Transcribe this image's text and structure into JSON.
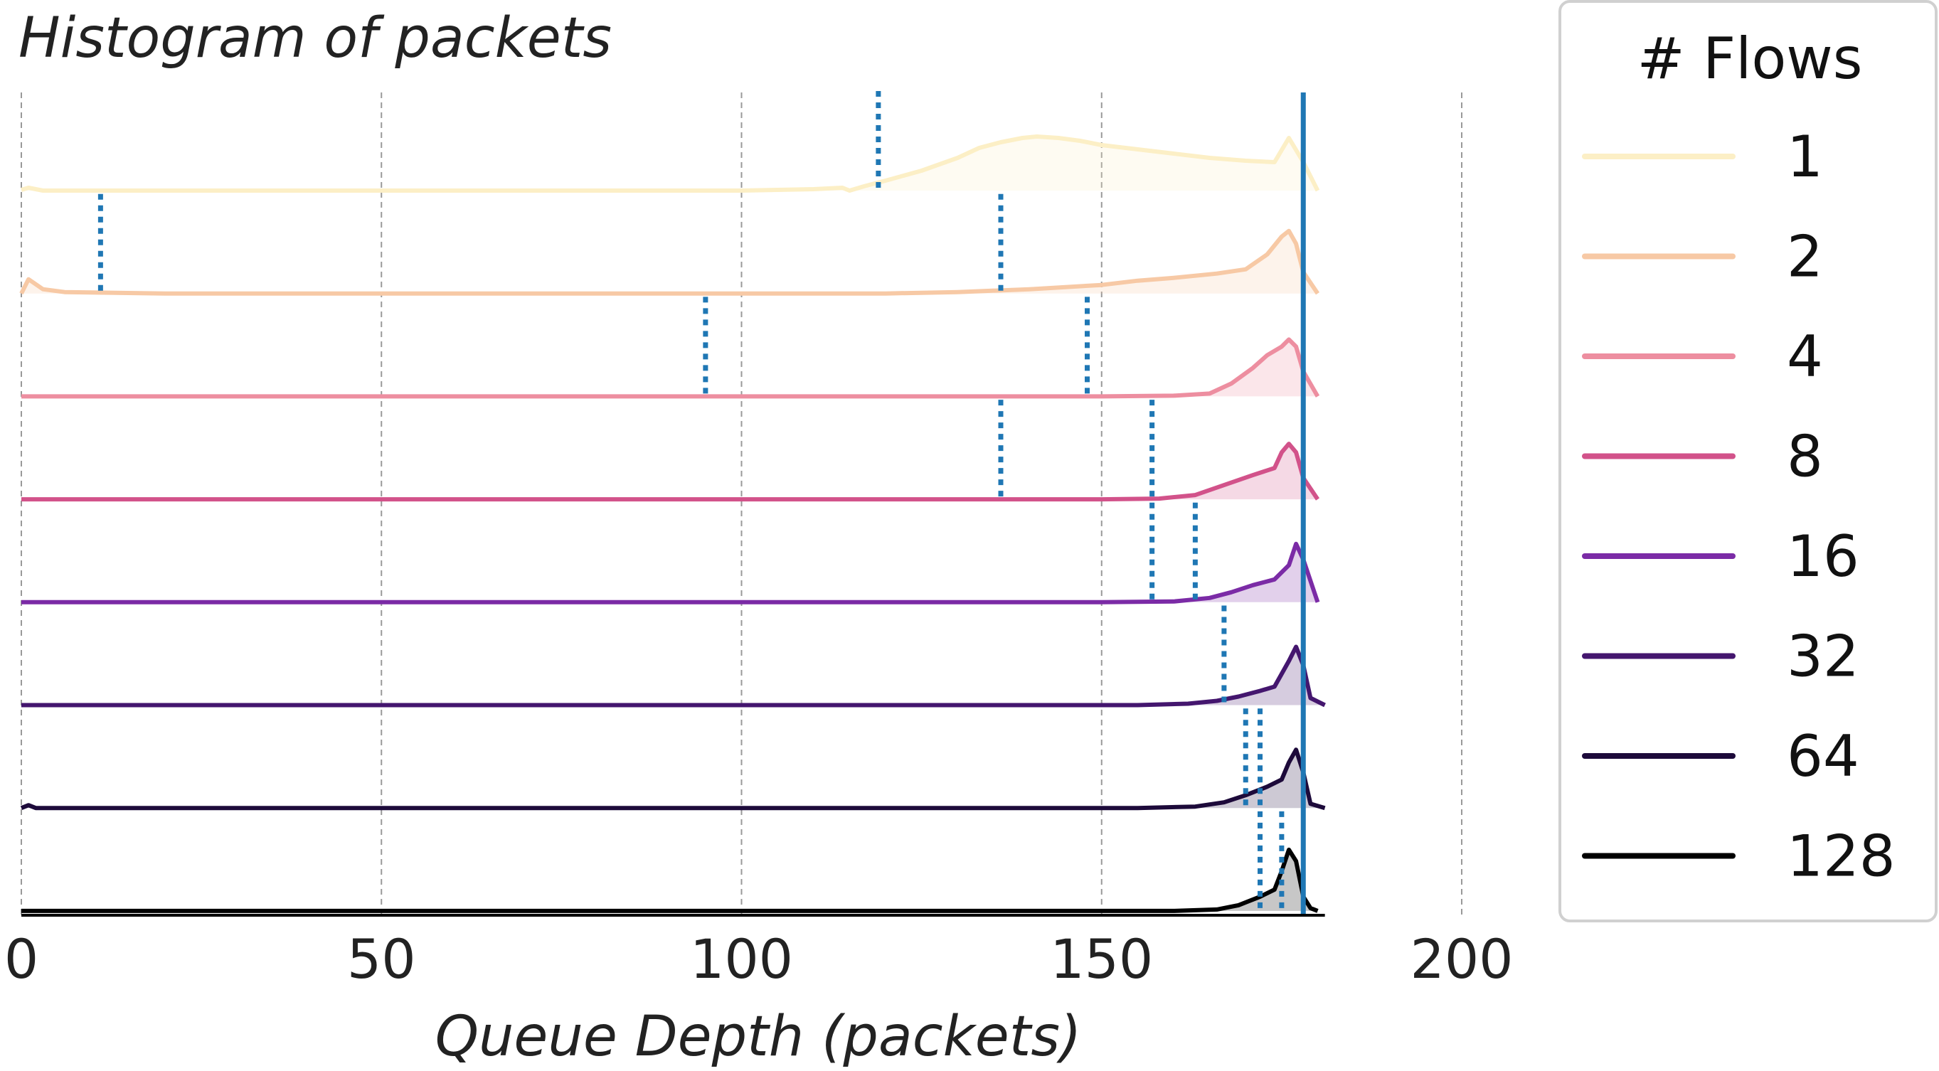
{
  "chart_data": {
    "type": "area",
    "title": "Histogram of packets",
    "xlabel": "Queue Depth (packets)",
    "ylabel": "",
    "xlim": [
      0,
      200
    ],
    "xticks": [
      0,
      50,
      100,
      150,
      200
    ],
    "grid": "vertical dashed",
    "buffer_size_line": 178,
    "legend": {
      "title": "# Flows",
      "placement": "right"
    },
    "series": [
      {
        "name": "1",
        "color": "#fcefc6",
        "mean_markers": [
          119,
          178
        ],
        "peak_x": 140,
        "points": [
          [
            0,
            1
          ],
          [
            1,
            4
          ],
          [
            3,
            0
          ],
          [
            60,
            0
          ],
          [
            100,
            0
          ],
          [
            110,
            2
          ],
          [
            114,
            4
          ],
          [
            115,
            0
          ],
          [
            117,
            6
          ],
          [
            120,
            14
          ],
          [
            125,
            28
          ],
          [
            130,
            46
          ],
          [
            133,
            60
          ],
          [
            136,
            68
          ],
          [
            139,
            74
          ],
          [
            141,
            76
          ],
          [
            144,
            74
          ],
          [
            147,
            70
          ],
          [
            150,
            64
          ],
          [
            155,
            58
          ],
          [
            160,
            52
          ],
          [
            165,
            46
          ],
          [
            170,
            42
          ],
          [
            174,
            40
          ],
          [
            176,
            74
          ],
          [
            178,
            40
          ],
          [
            180,
            0
          ]
        ]
      },
      {
        "name": "2",
        "color": "#f7c9a5",
        "mean_markers": [
          11,
          136,
          178
        ],
        "peak_x": 176,
        "points": [
          [
            0,
            0
          ],
          [
            1,
            20
          ],
          [
            3,
            6
          ],
          [
            6,
            2
          ],
          [
            20,
            0
          ],
          [
            120,
            0
          ],
          [
            130,
            2
          ],
          [
            140,
            6
          ],
          [
            150,
            12
          ],
          [
            155,
            18
          ],
          [
            160,
            22
          ],
          [
            166,
            28
          ],
          [
            170,
            34
          ],
          [
            173,
            55
          ],
          [
            175,
            80
          ],
          [
            176,
            88
          ],
          [
            177,
            70
          ],
          [
            178,
            30
          ],
          [
            180,
            0
          ]
        ]
      },
      {
        "name": "4",
        "color": "#ed8ea0",
        "mean_markers": [
          95,
          148,
          178
        ],
        "peak_x": 176,
        "points": [
          [
            0,
            0
          ],
          [
            150,
            0
          ],
          [
            160,
            1
          ],
          [
            165,
            4
          ],
          [
            168,
            18
          ],
          [
            171,
            40
          ],
          [
            173,
            58
          ],
          [
            175,
            70
          ],
          [
            176,
            80
          ],
          [
            177,
            70
          ],
          [
            178,
            35
          ],
          [
            180,
            0
          ]
        ]
      },
      {
        "name": "8",
        "color": "#d2528a",
        "mean_markers": [
          136,
          157,
          178
        ],
        "peak_x": 176,
        "points": [
          [
            0,
            0
          ],
          [
            150,
            0
          ],
          [
            158,
            1
          ],
          [
            163,
            6
          ],
          [
            167,
            20
          ],
          [
            171,
            34
          ],
          [
            174,
            44
          ],
          [
            175,
            66
          ],
          [
            176,
            78
          ],
          [
            177,
            66
          ],
          [
            178,
            30
          ],
          [
            180,
            0
          ]
        ]
      },
      {
        "name": "16",
        "color": "#7b2ba6",
        "mean_markers": [
          157,
          163,
          178
        ],
        "peak_x": 177,
        "points": [
          [
            0,
            0
          ],
          [
            150,
            0
          ],
          [
            160,
            1
          ],
          [
            165,
            6
          ],
          [
            168,
            14
          ],
          [
            171,
            24
          ],
          [
            174,
            32
          ],
          [
            176,
            52
          ],
          [
            177,
            82
          ],
          [
            178,
            60
          ],
          [
            180,
            0
          ]
        ]
      },
      {
        "name": "32",
        "color": "#44166e",
        "mean_markers": [
          167,
          178
        ],
        "peak_x": 177,
        "points": [
          [
            0,
            0
          ],
          [
            155,
            0
          ],
          [
            162,
            2
          ],
          [
            166,
            6
          ],
          [
            169,
            12
          ],
          [
            172,
            20
          ],
          [
            174,
            26
          ],
          [
            176,
            62
          ],
          [
            177,
            82
          ],
          [
            178,
            56
          ],
          [
            179,
            10
          ],
          [
            181,
            0
          ]
        ]
      },
      {
        "name": "64",
        "color": "#1d0a3a",
        "mean_markers": [
          170,
          172,
          178
        ],
        "peak_x": 177,
        "points": [
          [
            0,
            0
          ],
          [
            1,
            4
          ],
          [
            2,
            0
          ],
          [
            155,
            0
          ],
          [
            163,
            2
          ],
          [
            167,
            8
          ],
          [
            170,
            18
          ],
          [
            173,
            30
          ],
          [
            175,
            40
          ],
          [
            176,
            64
          ],
          [
            177,
            82
          ],
          [
            178,
            50
          ],
          [
            179,
            6
          ],
          [
            181,
            0
          ]
        ]
      },
      {
        "name": "128",
        "color": "#000000",
        "mean_markers": [
          172,
          175,
          178
        ],
        "peak_x": 176,
        "points": [
          [
            0,
            0
          ],
          [
            160,
            0
          ],
          [
            166,
            2
          ],
          [
            169,
            8
          ],
          [
            172,
            20
          ],
          [
            174,
            30
          ],
          [
            175,
            56
          ],
          [
            176,
            86
          ],
          [
            177,
            70
          ],
          [
            178,
            20
          ],
          [
            179,
            4
          ],
          [
            180,
            0
          ]
        ]
      }
    ]
  }
}
